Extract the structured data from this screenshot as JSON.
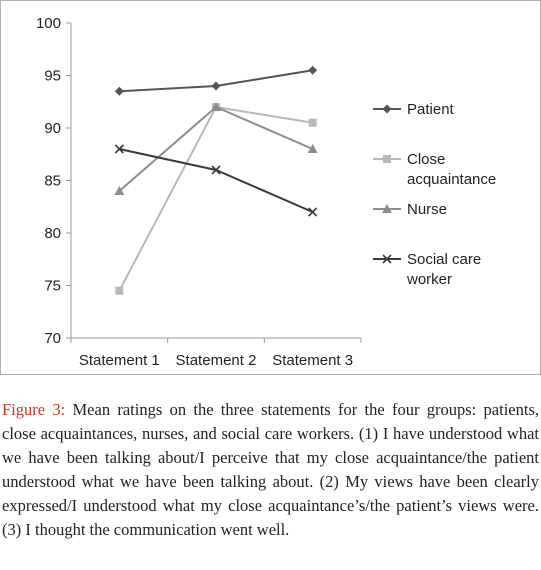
{
  "chart_data": {
    "type": "line",
    "categories": [
      "Statement 1",
      "Statement 2",
      "Statement 3"
    ],
    "ylim": [
      70,
      100
    ],
    "yticks": [
      70,
      75,
      80,
      85,
      90,
      95,
      100
    ],
    "grid": false,
    "legend_position": "right",
    "series": [
      {
        "name": "Patient",
        "values": [
          93.5,
          94,
          95.5
        ],
        "color": "#555555",
        "marker": "diamond",
        "legend_lines": [
          "Patient"
        ]
      },
      {
        "name": "Close acquaintance",
        "values": [
          74.5,
          92,
          90.5
        ],
        "color": "#b8b8b8",
        "marker": "square",
        "legend_lines": [
          "Close",
          "acquaintance"
        ]
      },
      {
        "name": "Nurse",
        "values": [
          84,
          92,
          88
        ],
        "color": "#8c8c8c",
        "marker": "triangle",
        "legend_lines": [
          "Nurse"
        ]
      },
      {
        "name": "Social care worker",
        "values": [
          88,
          86,
          82
        ],
        "color": "#3a3a3a",
        "marker": "x",
        "legend_lines": [
          "Social care",
          "worker"
        ]
      }
    ]
  },
  "caption": {
    "label": "Figure 3:",
    "text": " Mean ratings on the three statements for the four groups: patients, close acquaintances, nurses, and social care workers. (1) I have understood what we have been talking about/I perceive that my close acquaintance/the patient understood what we have been talking about. (2) My views have been clearly expressed/I understood what my close acquaintance’s/the patient’s views were. (3) I thought the communication went well."
  }
}
